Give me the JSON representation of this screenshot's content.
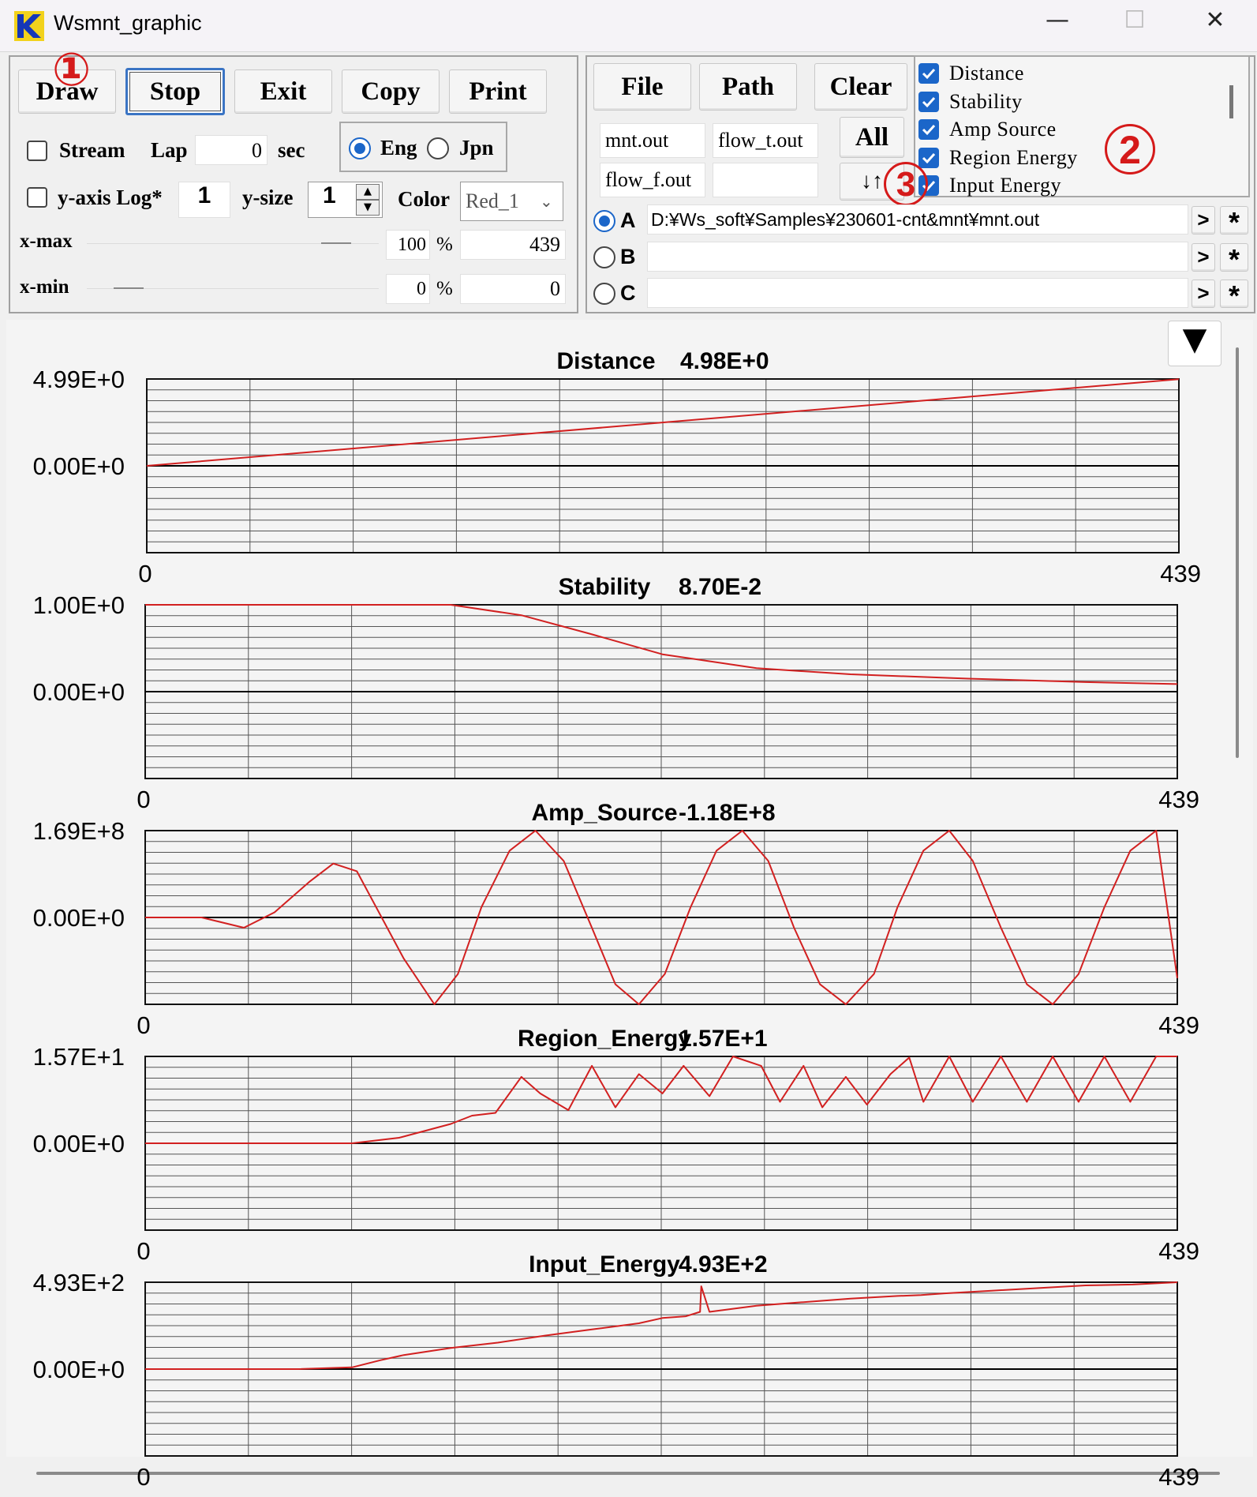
{
  "window": {
    "title": "Wsmnt_graphic",
    "minimize_glyph": "—",
    "maximize_glyph": "☐",
    "close_glyph": "✕"
  },
  "toolbar": {
    "draw_label": "Draw",
    "stop_label": "Stop",
    "exit_label": "Exit",
    "copy_label": "Copy",
    "print_label": "Print"
  },
  "options": {
    "stream_label": "Stream",
    "stream_checked": false,
    "lap_label": "Lap",
    "lap_value": "0",
    "sec_label": "sec",
    "eng_label": "Eng",
    "jpn_label": "Jpn",
    "language_selected": "Eng",
    "ylog_label": "y-axis Log*",
    "ylog_checked": false,
    "ylog_value": "1",
    "ysize_label": "y-size",
    "ysize_value": "1",
    "color_label": "Color",
    "color_value": "Red_1",
    "xmax_label": "x-max",
    "xmax_percent": "100",
    "xmax_value": "439",
    "xmin_label": "x-min",
    "xmin_percent": "0",
    "xmin_value": "0",
    "percent_sign": "%"
  },
  "files": {
    "file_label": "File",
    "path_label": "Path",
    "clear_label": "Clear",
    "all_label": "All",
    "swap_label": "↓↑",
    "file1": "mnt.out",
    "file2": "flow_t.out",
    "file3": "flow_f.out",
    "file4": "",
    "path_a_label": "A",
    "path_a": "D:¥Ws_soft¥Samples¥230601-cnt&mnt¥mnt.out",
    "path_b_label": "B",
    "path_b": "",
    "path_c_label": "C",
    "path_c": "",
    "path_selected": "A",
    "arrow_label": ">",
    "star_label": "*"
  },
  "variables": [
    {
      "label": "Distance",
      "checked": true
    },
    {
      "label": "Stability",
      "checked": true
    },
    {
      "label": "Amp  Source",
      "checked": true
    },
    {
      "label": "Region  Energy",
      "checked": true
    },
    {
      "label": "Input  Energy",
      "checked": true
    }
  ],
  "annotations": {
    "mark1": "①",
    "mark2": "2",
    "mark3": "3"
  },
  "scroll_down_glyph": "▼",
  "accent_color": "#1b66c9",
  "line_color": "#d22020",
  "chart_data": [
    {
      "type": "line",
      "title": "Distance",
      "value_label": "4.98E+0",
      "ymax_label": "4.99E+0",
      "yzero_label": "0.00E+0",
      "ylim": [
        -4.99,
        4.99
      ],
      "x": [
        0,
        439
      ],
      "y": [
        0,
        4.98
      ],
      "xlim": [
        0,
        439
      ],
      "xmin_label": "0",
      "xmax_label": "439"
    },
    {
      "type": "line",
      "title": "Stability",
      "value_label": "8.70E-2",
      "ymax_label": "1.00E+0",
      "yzero_label": "0.00E+0",
      "ylim": [
        -1.0,
        1.0
      ],
      "x": [
        0,
        130,
        160,
        190,
        220,
        260,
        300,
        350,
        400,
        439
      ],
      "y": [
        1.0,
        1.0,
        0.88,
        0.66,
        0.43,
        0.27,
        0.2,
        0.15,
        0.11,
        0.087
      ],
      "xlim": [
        0,
        439
      ],
      "xmin_label": "0",
      "xmax_label": "439"
    },
    {
      "type": "line",
      "title": "Amp_Source",
      "value_label": "-1.18E+8",
      "ymax_label": "1.69E+8",
      "yzero_label": "0.00E+0",
      "ylim": [
        -1.69,
        1.69
      ],
      "y_scale_note": "values in units of 1E+8",
      "x": [
        0,
        24,
        42,
        55,
        70,
        80,
        90,
        110,
        123,
        133,
        143,
        155,
        166,
        178,
        190,
        200,
        210,
        221,
        232,
        243,
        254,
        265,
        276,
        287,
        298,
        310,
        320,
        331,
        342,
        352,
        364,
        375,
        386,
        397,
        408,
        419,
        430,
        439
      ],
      "y": [
        0,
        0,
        -0.2,
        0.1,
        0.7,
        1.05,
        0.9,
        -0.8,
        -1.69,
        -1.1,
        0.2,
        1.3,
        1.69,
        1.1,
        -0.2,
        -1.3,
        -1.69,
        -1.1,
        0.2,
        1.3,
        1.69,
        1.1,
        -0.2,
        -1.3,
        -1.69,
        -1.1,
        0.2,
        1.3,
        1.69,
        1.1,
        -0.2,
        -1.3,
        -1.69,
        -1.1,
        0.2,
        1.3,
        1.69,
        -1.18
      ],
      "xlim": [
        0,
        439
      ],
      "xmin_label": "0",
      "xmax_label": "439"
    },
    {
      "type": "line",
      "title": "Region_Energy",
      "value_label": "1.57E+1",
      "ymax_label": "1.57E+1",
      "yzero_label": "0.00E+0",
      "ylim": [
        -15.7,
        15.7
      ],
      "x": [
        0,
        88,
        98,
        98,
        108,
        108,
        130,
        130,
        139,
        139,
        149,
        149,
        160,
        160,
        168,
        168,
        180,
        180,
        190,
        190,
        200,
        200,
        210,
        210,
        220,
        220,
        229,
        229,
        240,
        240,
        250,
        250,
        262,
        262,
        270,
        270,
        280,
        280,
        288,
        288,
        298,
        298,
        307,
        307,
        317,
        317,
        325,
        325,
        331,
        342,
        352,
        364,
        375,
        386,
        397,
        408,
        419,
        430,
        439
      ],
      "y": [
        0,
        0,
        0.5,
        0.5,
        1.0,
        1.0,
        3.5,
        3.5,
        5.0,
        5.0,
        5.5,
        5.5,
        12.0,
        12.0,
        9.0,
        9.0,
        6.0,
        6.0,
        14.0,
        14.0,
        6.5,
        6.5,
        12.5,
        12.5,
        9.0,
        9.0,
        14.0,
        14.0,
        8.5,
        8.5,
        15.7,
        15.7,
        14.0,
        14.0,
        7.5,
        7.5,
        14.0,
        14.0,
        6.5,
        6.5,
        12.0,
        12.0,
        7.0,
        7.0,
        12.5,
        12.5,
        15.5,
        15.5,
        7.5,
        15.7,
        7.5,
        15.7,
        7.5,
        15.7,
        7.5,
        15.7,
        7.5,
        15.7,
        15.7
      ],
      "xlim": [
        0,
        439
      ],
      "xmin_label": "0",
      "xmax_label": "439"
    },
    {
      "type": "line",
      "title": "Input_Energy",
      "value_label": "4.93E+2",
      "ymax_label": "4.93E+2",
      "yzero_label": "0.00E+0",
      "ylim": [
        -493,
        493
      ],
      "x": [
        0,
        65,
        88,
        100,
        110,
        130,
        150,
        170,
        190,
        210,
        220,
        230,
        236,
        236.5,
        240,
        260,
        280,
        300,
        320,
        330,
        340,
        360,
        380,
        400,
        420,
        439
      ],
      "y": [
        0,
        0,
        10,
        50,
        80,
        120,
        150,
        190,
        225,
        260,
        290,
        300,
        325,
        470,
        325,
        360,
        380,
        400,
        415,
        420,
        430,
        445,
        460,
        475,
        480,
        493
      ],
      "xlim": [
        0,
        439
      ],
      "xmin_label": "0",
      "xmax_label": "439"
    }
  ]
}
